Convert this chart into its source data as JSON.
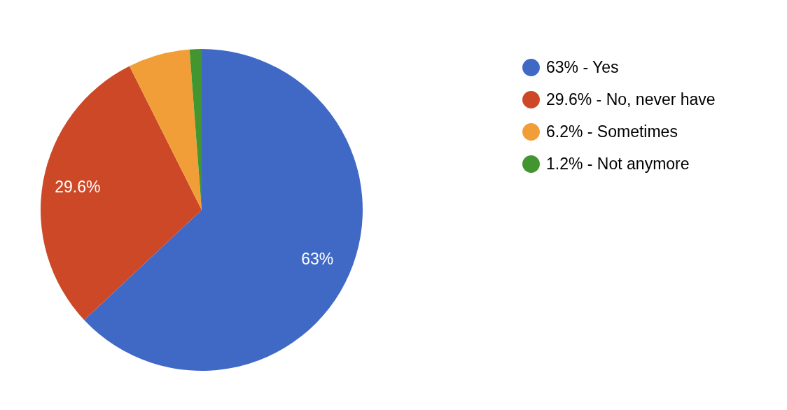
{
  "chart_data": {
    "type": "pie",
    "categories": [
      "63% - Yes",
      "29.6% - No, never have",
      "6.2% - Sometimes",
      "1.2% - Not anymore"
    ],
    "values": [
      63,
      29.6,
      6.2,
      1.2
    ],
    "colors": [
      "#4069c6",
      "#cc4827",
      "#f19e38",
      "#43952f"
    ],
    "value_labels": [
      "63%",
      "29.6%",
      null,
      null
    ],
    "legend": "top right"
  }
}
